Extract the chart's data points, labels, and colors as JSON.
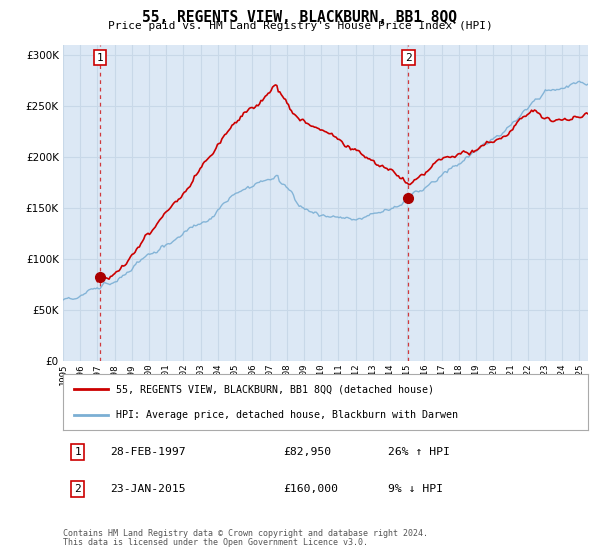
{
  "title": "55, REGENTS VIEW, BLACKBURN, BB1 8QQ",
  "subtitle": "Price paid vs. HM Land Registry's House Price Index (HPI)",
  "legend_line1": "55, REGENTS VIEW, BLACKBURN, BB1 8QQ (detached house)",
  "legend_line2": "HPI: Average price, detached house, Blackburn with Darwen",
  "annotation1_year": 1997.15,
  "annotation1_value": 82950,
  "annotation2_year": 2015.07,
  "annotation2_value": 160000,
  "yticks": [
    0,
    50000,
    100000,
    150000,
    200000,
    250000,
    300000
  ],
  "ymax": 310000,
  "footnote1": "Contains HM Land Registry data © Crown copyright and database right 2024.",
  "footnote2": "This data is licensed under the Open Government Licence v3.0.",
  "hpi_color": "#7bafd4",
  "price_color": "#cc0000",
  "dot_color": "#aa0000",
  "background_color": "#dce8f5",
  "grid_color": "#c8d8e8",
  "vline_color": "#cc0000",
  "xmin": 1995,
  "xmax": 2025.5
}
